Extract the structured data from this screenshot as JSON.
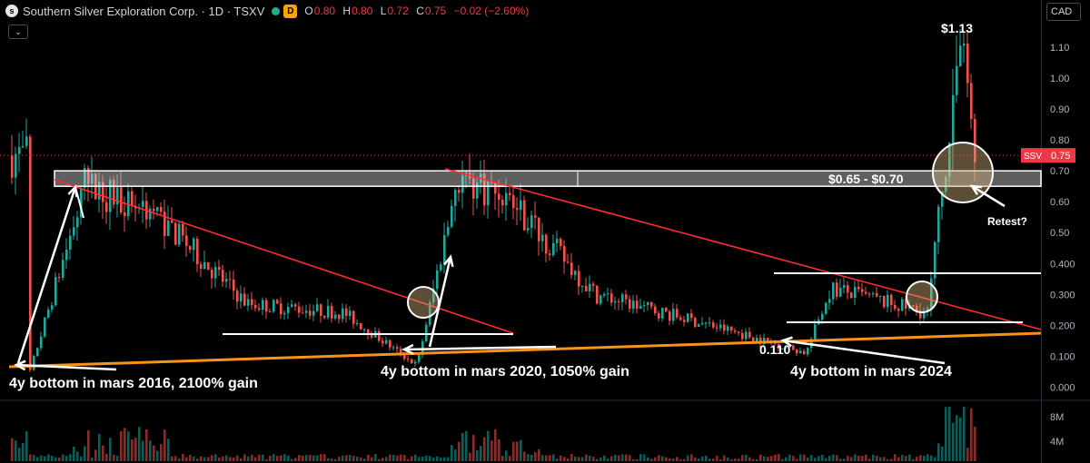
{
  "header": {
    "logo_letter": "s",
    "symbol": "Southern Silver Exploration Corp. · 1D · TSXV",
    "interval_badge": "D",
    "o_label": "O",
    "o": "0.80",
    "h_label": "H",
    "h": "0.80",
    "l_label": "L",
    "l": "0.72",
    "c_label": "C",
    "c": "0.75",
    "change": "−0.02 (−2.60%)",
    "collapse_icon": "chevron-down-icon"
  },
  "currency": "CAD",
  "price_label": {
    "ticker": "SSV",
    "value": "0.75"
  },
  "colors": {
    "up": "#26a69a",
    "down": "#ef5350",
    "support": "#f7931a",
    "downtrend": "#ff2d2d",
    "current": "#f23645"
  },
  "chart_data": {
    "type": "candlestick",
    "title": "Southern Silver Exploration Corp. · 1D · TSXV",
    "ylim": [
      -0.04,
      1.2
    ],
    "yticks": [
      "1.10",
      "1.00",
      "0.90",
      "0.80",
      "0.70",
      "0.60",
      "0.50",
      "0.400",
      "0.300",
      "0.200",
      "0.100",
      "0.000"
    ],
    "volume_ticks": [
      "8M",
      "4M"
    ],
    "current_price": 0.75,
    "resistance_zone": [
      0.65,
      0.7
    ],
    "price_series": [
      {
        "date": "2016-03",
        "value": 0.03
      },
      {
        "date": "2016-10",
        "value": 0.65
      },
      {
        "date": "2017-06",
        "value": 0.58
      },
      {
        "date": "2018-06",
        "value": 0.27
      },
      {
        "date": "2019-06",
        "value": 0.24
      },
      {
        "date": "2020-03",
        "value": 0.07
      },
      {
        "date": "2020-08",
        "value": 0.68
      },
      {
        "date": "2021-02",
        "value": 0.62
      },
      {
        "date": "2022-01",
        "value": 0.3
      },
      {
        "date": "2023-06",
        "value": 0.18
      },
      {
        "date": "2024-03",
        "value": 0.11
      },
      {
        "date": "2024-06",
        "value": 0.32
      },
      {
        "date": "2025-06",
        "value": 0.24
      },
      {
        "date": "2025-10",
        "value": 1.13
      },
      {
        "date": "2025-12",
        "value": 0.75
      }
    ],
    "annotations": {
      "top_price": "$1.13",
      "zone_label": "$0.65 - $0.70",
      "retest": "Retest?",
      "low_value": "0.110",
      "bottom_2016": "4y bottom in mars 2016, 2100% gain",
      "bottom_2020": "4y bottom in mars 2020, 1050% gain",
      "bottom_2024": "4y bottom in mars 2024"
    }
  }
}
